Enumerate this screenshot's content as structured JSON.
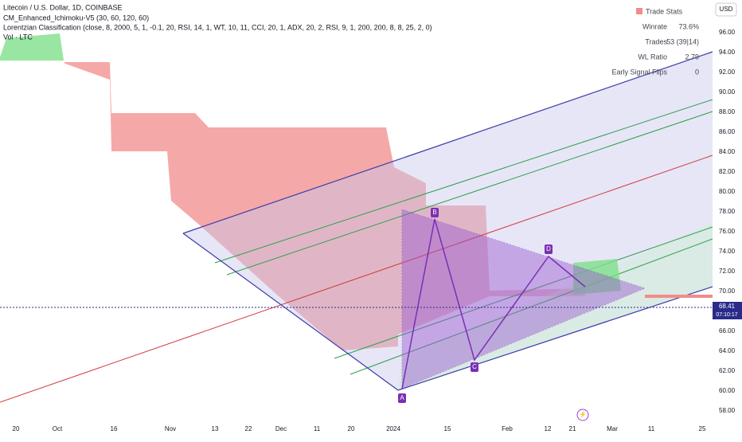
{
  "header": {
    "symbol": "Litecoin / U.S. Dollar, 1D, COINBASE",
    "indicators": [
      "CM_Enhanced_Ichimoku-V5 (30, 60, 120, 60)",
      "Lorentzian Classification (close, 8, 2000, 5, 1, -0.1, 20, RSI, 14, 1, WT, 10, 11, CCI, 20, 1, ADX, 20, 2, RSI, 9, 1, 200, 200, 8, 8, 25, 2, 0)",
      "Vol · LTC"
    ]
  },
  "currency": "USD",
  "trade_stats": {
    "title": "Trade Stats",
    "rows": [
      [
        "Winrate",
        "73.6%"
      ],
      [
        "Trades",
        "53 (39|14)"
      ],
      [
        "WL Ratio",
        "2.79"
      ],
      [
        "Early Signal Flips",
        "0"
      ]
    ]
  },
  "price_tag": {
    "value": 68.41,
    "label": "68.41",
    "timer": "07:10:17"
  },
  "y_axis": {
    "ticks": [
      {
        "value": 96,
        "label": "96.00"
      },
      {
        "value": 94,
        "label": "94.00"
      },
      {
        "value": 92,
        "label": "92.00"
      },
      {
        "value": 90,
        "label": "90.00"
      },
      {
        "value": 88,
        "label": "88.00"
      },
      {
        "value": 86,
        "label": "86.00"
      },
      {
        "value": 84,
        "label": "84.00"
      },
      {
        "value": 82,
        "label": "82.00"
      },
      {
        "value": 80,
        "label": "80.00"
      },
      {
        "value": 78,
        "label": "78.00"
      },
      {
        "value": 76,
        "label": "76.00"
      },
      {
        "value": 74,
        "label": "74.00"
      },
      {
        "value": 72,
        "label": "72.00"
      },
      {
        "value": 70,
        "label": "70.00"
      },
      {
        "value": 66,
        "label": "66.00"
      },
      {
        "value": 64,
        "label": "64.00"
      },
      {
        "value": 62,
        "label": "62.00"
      },
      {
        "value": 60,
        "label": "60.00"
      },
      {
        "value": 58,
        "label": "58.00"
      }
    ]
  },
  "x_axis": {
    "labels": [
      "20",
      "Oct",
      "16",
      "Nov",
      "13",
      "22",
      "Dec",
      "11",
      "20",
      "2024",
      "15",
      "Feb",
      "12",
      "21",
      "Mar",
      "11",
      "25"
    ]
  },
  "pattern_points": [
    "A",
    "B",
    "C",
    "D"
  ]
}
